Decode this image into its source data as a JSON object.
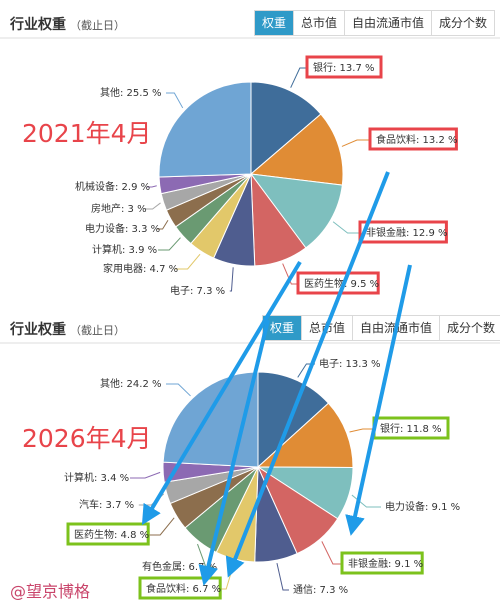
{
  "colors": {
    "tab_active": "#2f9ac8",
    "year_label": "#e8444a",
    "box_red": "#e8444a",
    "box_green": "#7cc21c",
    "arrow": "#1f9be8"
  },
  "header": {
    "title": "行业权重",
    "subtitle": "（截止日）"
  },
  "tabs": [
    "权重",
    "总市值",
    "自由流通市值",
    "成分个数"
  ],
  "panels": [
    {
      "year_label": "2021年4月"
    },
    {
      "year_label": "2026年4月"
    }
  ],
  "watermark": "@望京博格",
  "chart_data": [
    {
      "type": "pie",
      "unit": "%",
      "slices": [
        {
          "name": "银行",
          "value": 13.7,
          "color": "#3f6d9a"
        },
        {
          "name": "食品饮料",
          "value": 13.2,
          "color": "#e08c35"
        },
        {
          "name": "非银金融",
          "value": 12.9,
          "color": "#7ebfbe"
        },
        {
          "name": "医药生物",
          "value": 9.5,
          "color": "#d36563"
        },
        {
          "name": "电子",
          "value": 7.3,
          "color": "#4f5d8f"
        },
        {
          "name": "家用电器",
          "value": 4.7,
          "color": "#e2c86a"
        },
        {
          "name": "计算机",
          "value": 3.9,
          "color": "#6a9a72"
        },
        {
          "name": "电力设备",
          "value": 3.3,
          "color": "#8c6e4d"
        },
        {
          "name": "房地产",
          "value": 3.0,
          "color": "#a7a7a7"
        },
        {
          "name": "机械设备",
          "value": 2.9,
          "color": "#8c6ab3"
        },
        {
          "name": "其他",
          "value": 25.5,
          "color": "#6fa5d4"
        }
      ],
      "highlight": [
        "银行",
        "食品饮料",
        "非银金融",
        "医药生物"
      ],
      "highlight_color": "red"
    },
    {
      "type": "pie",
      "unit": "%",
      "slices": [
        {
          "name": "电子",
          "value": 13.3,
          "color": "#3f6d9a"
        },
        {
          "name": "银行",
          "value": 11.8,
          "color": "#e08c35"
        },
        {
          "name": "电力设备",
          "value": 9.1,
          "color": "#7ebfbe"
        },
        {
          "name": "非银金融",
          "value": 9.1,
          "color": "#d36563"
        },
        {
          "name": "通信",
          "value": 7.3,
          "color": "#4f5d8f"
        },
        {
          "name": "食品饮料",
          "value": 6.7,
          "color": "#e2c86a"
        },
        {
          "name": "有色金属",
          "value": 6.7,
          "color": "#6a9a72"
        },
        {
          "name": "医药生物",
          "value": 4.8,
          "color": "#8c6e4d"
        },
        {
          "name": "汽车",
          "value": 3.7,
          "color": "#a7a7a7"
        },
        {
          "name": "计算机",
          "value": 3.4,
          "color": "#8c6ab3"
        },
        {
          "name": "其他",
          "value": 24.2,
          "color": "#6fa5d4"
        }
      ],
      "highlight": [
        "银行",
        "医药生物",
        "食品饮料",
        "非银金融"
      ],
      "highlight_color": "green"
    }
  ]
}
